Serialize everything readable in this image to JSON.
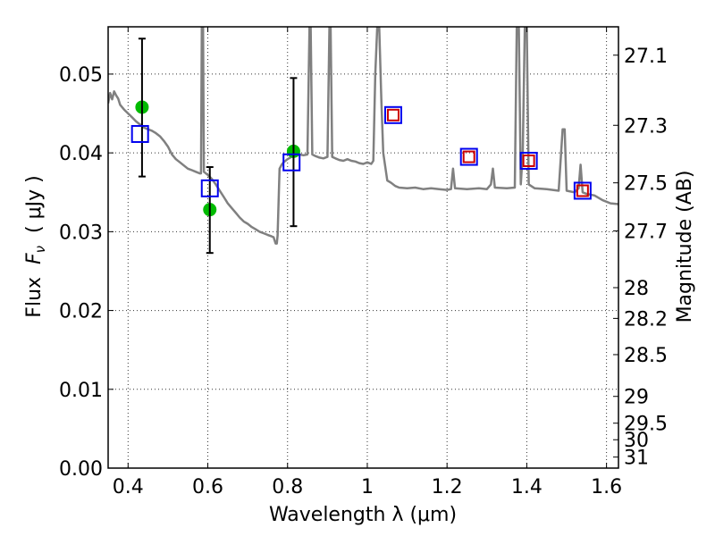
{
  "chart_data": {
    "type": "scatter",
    "xlabel": "Wavelength  λ (μm)",
    "ylabel": "Flux  Fν  ( μJy )",
    "ylabel_parts": {
      "prefix": "Flux  ",
      "symbol": "F",
      "subscript": "ν",
      "suffix": "  ( μJy )"
    },
    "y2label": "Magnitude (AB)",
    "xlim": [
      0.35,
      1.63
    ],
    "ylim": [
      0.0,
      0.056
    ],
    "grid": true,
    "x_ticks": [
      0.4,
      0.6,
      0.8,
      1.0,
      1.2,
      1.4,
      1.6
    ],
    "x_tick_labels": [
      "0.4",
      "0.6",
      "0.8",
      "1",
      "1.2",
      "1.4",
      "1.6"
    ],
    "y_ticks": [
      0.0,
      0.01,
      0.02,
      0.03,
      0.04,
      0.05
    ],
    "y_tick_labels": [
      "0.00",
      "0.01",
      "0.02",
      "0.03",
      "0.04",
      "0.05"
    ],
    "y2_ticks": [
      {
        "label": "27.1",
        "flux": 0.0524
      },
      {
        "label": "27.3",
        "flux": 0.0435
      },
      {
        "label": "27.5",
        "flux": 0.0362
      },
      {
        "label": "27.7",
        "flux": 0.0301
      },
      {
        "label": "28",
        "flux": 0.0229
      },
      {
        "label": "28.2",
        "flux": 0.019
      },
      {
        "label": "28.5",
        "flux": 0.0144
      },
      {
        "label": "29",
        "flux": 0.0091
      },
      {
        "label": "29.5",
        "flux": 0.0057
      },
      {
        "label": "30",
        "flux": 0.0036
      },
      {
        "label": "31",
        "flux": 0.0014
      }
    ],
    "series": [
      {
        "name": "template-spectrum",
        "kind": "line",
        "color": "#808080",
        "points": [
          [
            0.35,
            0.0463
          ],
          [
            0.355,
            0.0476
          ],
          [
            0.36,
            0.0468
          ],
          [
            0.365,
            0.0478
          ],
          [
            0.37,
            0.0473
          ],
          [
            0.375,
            0.0469
          ],
          [
            0.38,
            0.0461
          ],
          [
            0.39,
            0.0455
          ],
          [
            0.4,
            0.045
          ],
          [
            0.41,
            0.0445
          ],
          [
            0.42,
            0.044
          ],
          [
            0.43,
            0.0436
          ],
          [
            0.44,
            0.0432
          ],
          [
            0.45,
            0.043
          ],
          [
            0.46,
            0.0428
          ],
          [
            0.47,
            0.0425
          ],
          [
            0.48,
            0.0421
          ],
          [
            0.49,
            0.0415
          ],
          [
            0.5,
            0.0408
          ],
          [
            0.51,
            0.0398
          ],
          [
            0.52,
            0.0392
          ],
          [
            0.53,
            0.0388
          ],
          [
            0.54,
            0.0384
          ],
          [
            0.55,
            0.038
          ],
          [
            0.56,
            0.0378
          ],
          [
            0.57,
            0.0376
          ],
          [
            0.58,
            0.0374
          ],
          [
            0.583,
            0.0374
          ],
          [
            0.585,
            0.056
          ],
          [
            0.588,
            0.056
          ],
          [
            0.59,
            0.0376
          ],
          [
            0.6,
            0.0372
          ],
          [
            0.61,
            0.0367
          ],
          [
            0.62,
            0.036
          ],
          [
            0.63,
            0.0352
          ],
          [
            0.64,
            0.0344
          ],
          [
            0.65,
            0.0336
          ],
          [
            0.66,
            0.033
          ],
          [
            0.67,
            0.0324
          ],
          [
            0.68,
            0.0318
          ],
          [
            0.69,
            0.0313
          ],
          [
            0.7,
            0.031
          ],
          [
            0.71,
            0.0306
          ],
          [
            0.72,
            0.0303
          ],
          [
            0.73,
            0.03
          ],
          [
            0.74,
            0.0298
          ],
          [
            0.75,
            0.0296
          ],
          [
            0.76,
            0.0294
          ],
          [
            0.765,
            0.0293
          ],
          [
            0.77,
            0.0285
          ],
          [
            0.773,
            0.0285
          ],
          [
            0.775,
            0.0295
          ],
          [
            0.78,
            0.038
          ],
          [
            0.785,
            0.0385
          ],
          [
            0.79,
            0.0388
          ],
          [
            0.8,
            0.0392
          ],
          [
            0.81,
            0.0395
          ],
          [
            0.82,
            0.0396
          ],
          [
            0.83,
            0.0398
          ],
          [
            0.84,
            0.0397
          ],
          [
            0.85,
            0.0398
          ],
          [
            0.855,
            0.056
          ],
          [
            0.858,
            0.056
          ],
          [
            0.862,
            0.0398
          ],
          [
            0.87,
            0.0396
          ],
          [
            0.88,
            0.0394
          ],
          [
            0.89,
            0.0393
          ],
          [
            0.9,
            0.0395
          ],
          [
            0.905,
            0.056
          ],
          [
            0.908,
            0.056
          ],
          [
            0.912,
            0.0395
          ],
          [
            0.92,
            0.0393
          ],
          [
            0.93,
            0.0391
          ],
          [
            0.94,
            0.039
          ],
          [
            0.95,
            0.0392
          ],
          [
            0.96,
            0.039
          ],
          [
            0.97,
            0.0389
          ],
          [
            0.98,
            0.0387
          ],
          [
            0.99,
            0.0386
          ],
          [
            1.0,
            0.0388
          ],
          [
            1.01,
            0.0386
          ],
          [
            1.015,
            0.039
          ],
          [
            1.02,
            0.05
          ],
          [
            1.025,
            0.056
          ],
          [
            1.03,
            0.056
          ],
          [
            1.035,
            0.047
          ],
          [
            1.04,
            0.04
          ],
          [
            1.05,
            0.0365
          ],
          [
            1.06,
            0.0362
          ],
          [
            1.07,
            0.0358
          ],
          [
            1.08,
            0.0356
          ],
          [
            1.1,
            0.0355
          ],
          [
            1.12,
            0.0356
          ],
          [
            1.14,
            0.0354
          ],
          [
            1.16,
            0.0355
          ],
          [
            1.18,
            0.0354
          ],
          [
            1.2,
            0.0353
          ],
          [
            1.21,
            0.0354
          ],
          [
            1.215,
            0.038
          ],
          [
            1.22,
            0.0355
          ],
          [
            1.25,
            0.0354
          ],
          [
            1.28,
            0.0355
          ],
          [
            1.3,
            0.0354
          ],
          [
            1.31,
            0.036
          ],
          [
            1.315,
            0.038
          ],
          [
            1.32,
            0.0356
          ],
          [
            1.35,
            0.0355
          ],
          [
            1.37,
            0.0356
          ],
          [
            1.375,
            0.056
          ],
          [
            1.38,
            0.056
          ],
          [
            1.385,
            0.036
          ],
          [
            1.39,
            0.04
          ],
          [
            1.395,
            0.056
          ],
          [
            1.4,
            0.056
          ],
          [
            1.405,
            0.036
          ],
          [
            1.42,
            0.0355
          ],
          [
            1.45,
            0.0354
          ],
          [
            1.48,
            0.0352
          ],
          [
            1.49,
            0.043
          ],
          [
            1.495,
            0.043
          ],
          [
            1.5,
            0.0352
          ],
          [
            1.52,
            0.035
          ],
          [
            1.53,
            0.0355
          ],
          [
            1.535,
            0.0385
          ],
          [
            1.54,
            0.035
          ],
          [
            1.55,
            0.0348
          ],
          [
            1.57,
            0.0346
          ],
          [
            1.59,
            0.034
          ],
          [
            1.6,
            0.0338
          ],
          [
            1.61,
            0.0336
          ],
          [
            1.63,
            0.0335
          ]
        ]
      },
      {
        "name": "observed-flux",
        "kind": "marker",
        "marker": "circle",
        "color": "#00bb00",
        "points": [
          [
            0.435,
            0.0458
          ],
          [
            0.605,
            0.0328
          ],
          [
            0.815,
            0.0402
          ]
        ]
      },
      {
        "name": "error-bars",
        "kind": "errorbar",
        "color": "#000000",
        "bars": [
          {
            "x": 0.435,
            "low": 0.037,
            "high": 0.0545
          },
          {
            "x": 0.605,
            "low": 0.0273,
            "high": 0.0382
          },
          {
            "x": 0.815,
            "low": 0.0307,
            "high": 0.0495
          }
        ]
      },
      {
        "name": "model-flux",
        "kind": "marker",
        "marker": "square",
        "color": "#0000ee",
        "points": [
          [
            0.43,
            0.0424
          ],
          [
            0.605,
            0.0355
          ],
          [
            0.81,
            0.0388
          ],
          [
            1.065,
            0.0448
          ],
          [
            1.255,
            0.0395
          ],
          [
            1.405,
            0.039
          ],
          [
            1.54,
            0.0352
          ]
        ]
      },
      {
        "name": "model-flux-inner",
        "kind": "marker",
        "marker": "square",
        "color": "#cc0000",
        "points": [
          [
            1.065,
            0.0448
          ],
          [
            1.255,
            0.0395
          ],
          [
            1.405,
            0.039
          ],
          [
            1.54,
            0.0352
          ]
        ]
      }
    ]
  }
}
